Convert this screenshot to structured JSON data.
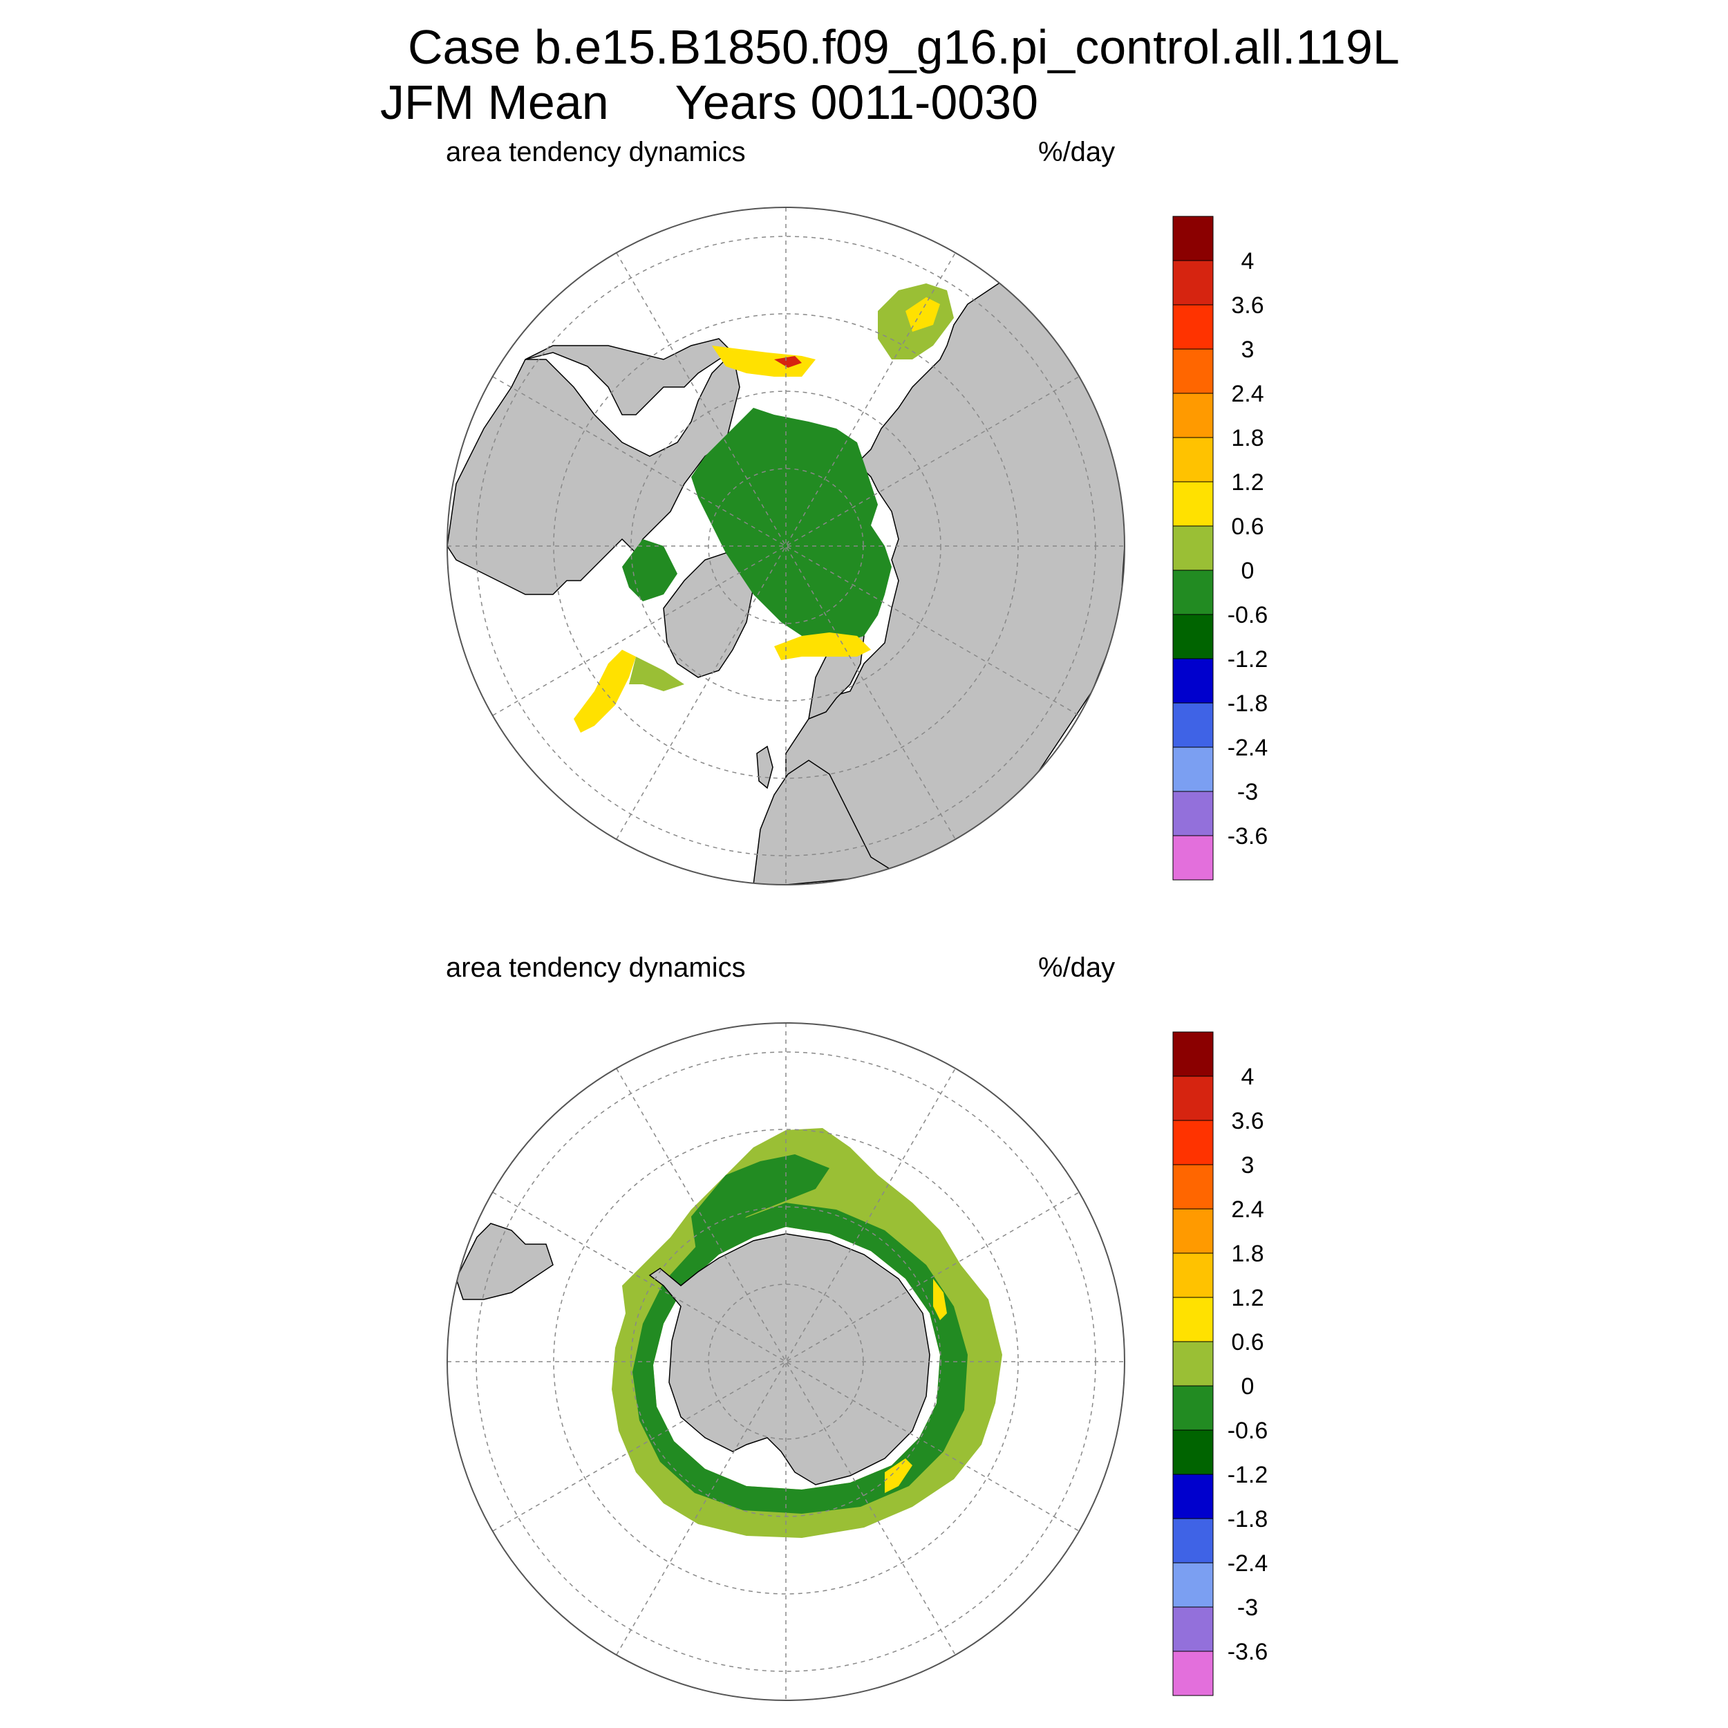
{
  "header": {
    "title_line1": "Case b.e15.B1850.f09_g16.pi_control.all.119L",
    "title_line2": "JFM Mean     Years 0011-0030"
  },
  "panels": [
    {
      "id": "north",
      "left_label": "area tendency dynamics",
      "right_label": "%/day"
    },
    {
      "id": "south",
      "left_label": "area tendency dynamics",
      "right_label": "%/day"
    }
  ],
  "colorbar": {
    "labels": [
      "4",
      "3.6",
      "3",
      "2.4",
      "1.8",
      "1.2",
      "0.6",
      "0",
      "-0.6",
      "-1.2",
      "-1.8",
      "-2.4",
      "-3",
      "-3.6"
    ],
    "colors": [
      "#8b0000",
      "#d62410",
      "#ff3300",
      "#ff6600",
      "#ff9a00",
      "#ffc200",
      "#ffe100",
      "#9abf35",
      "#228b22",
      "#006400",
      "#0000cd",
      "#3f63e6",
      "#7b9ff2",
      "#9370db",
      "#e36fdc"
    ]
  },
  "colors": {
    "land": "#c0c0c0",
    "grid": "#888888"
  }
}
